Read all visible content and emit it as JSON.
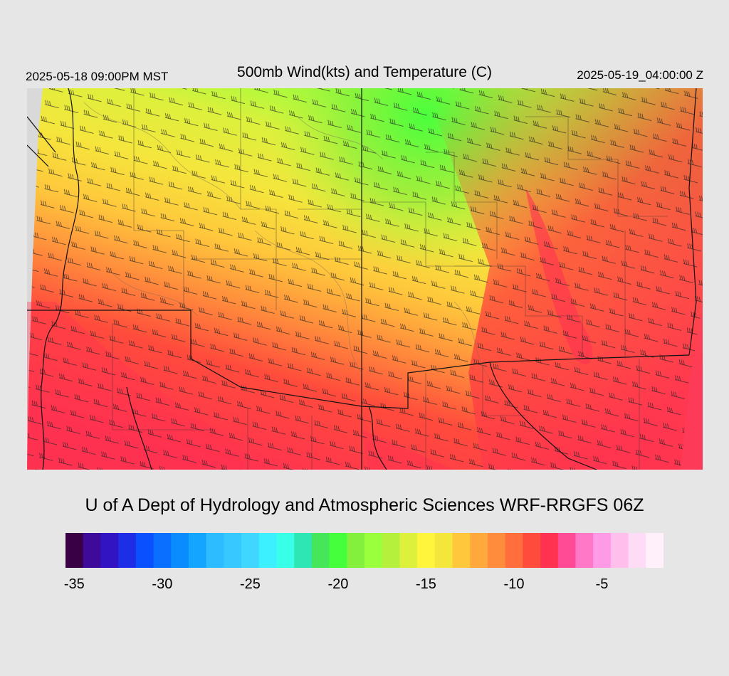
{
  "header": {
    "valid_local": "2025-05-18 09:00PM MST",
    "title": "500mb Wind(kts) and Temperature (C)",
    "valid_utc": "2025-05-19_04:00:00 Z"
  },
  "credit": "U of A Dept of Hydrology and Atmospheric Sciences WRF-RRGFS 06Z",
  "colorbar": {
    "colors": [
      "#3a0045",
      "#3d0a9a",
      "#3314c3",
      "#1e2de6",
      "#0a50ff",
      "#0a6eff",
      "#0a8cff",
      "#13a5ff",
      "#2dbcff",
      "#36c8ff",
      "#3fd6ff",
      "#3cf0ff",
      "#38ffe8",
      "#2ee6b4",
      "#46e65a",
      "#46ff3c",
      "#82f03c",
      "#9aff3c",
      "#b4f03c",
      "#dcf03c",
      "#fff53c",
      "#f5e63c",
      "#ffc83c",
      "#ffa83c",
      "#ff8c3c",
      "#ff6e3c",
      "#ff4b3c",
      "#ff3250",
      "#ff4b96",
      "#ff78c8",
      "#ff9be6",
      "#ffbeeb",
      "#ffdcf5",
      "#fff0fa"
    ],
    "ticks": [
      {
        "label": "-35",
        "index": 0.5
      },
      {
        "label": "-30",
        "index": 5.5
      },
      {
        "label": "-25",
        "index": 10.5
      },
      {
        "label": "-20",
        "index": 15.5
      },
      {
        "label": "-15",
        "index": 20.5
      },
      {
        "label": "-10",
        "index": 25.5
      },
      {
        "label": "-5",
        "index": 30.5
      }
    ]
  }
}
